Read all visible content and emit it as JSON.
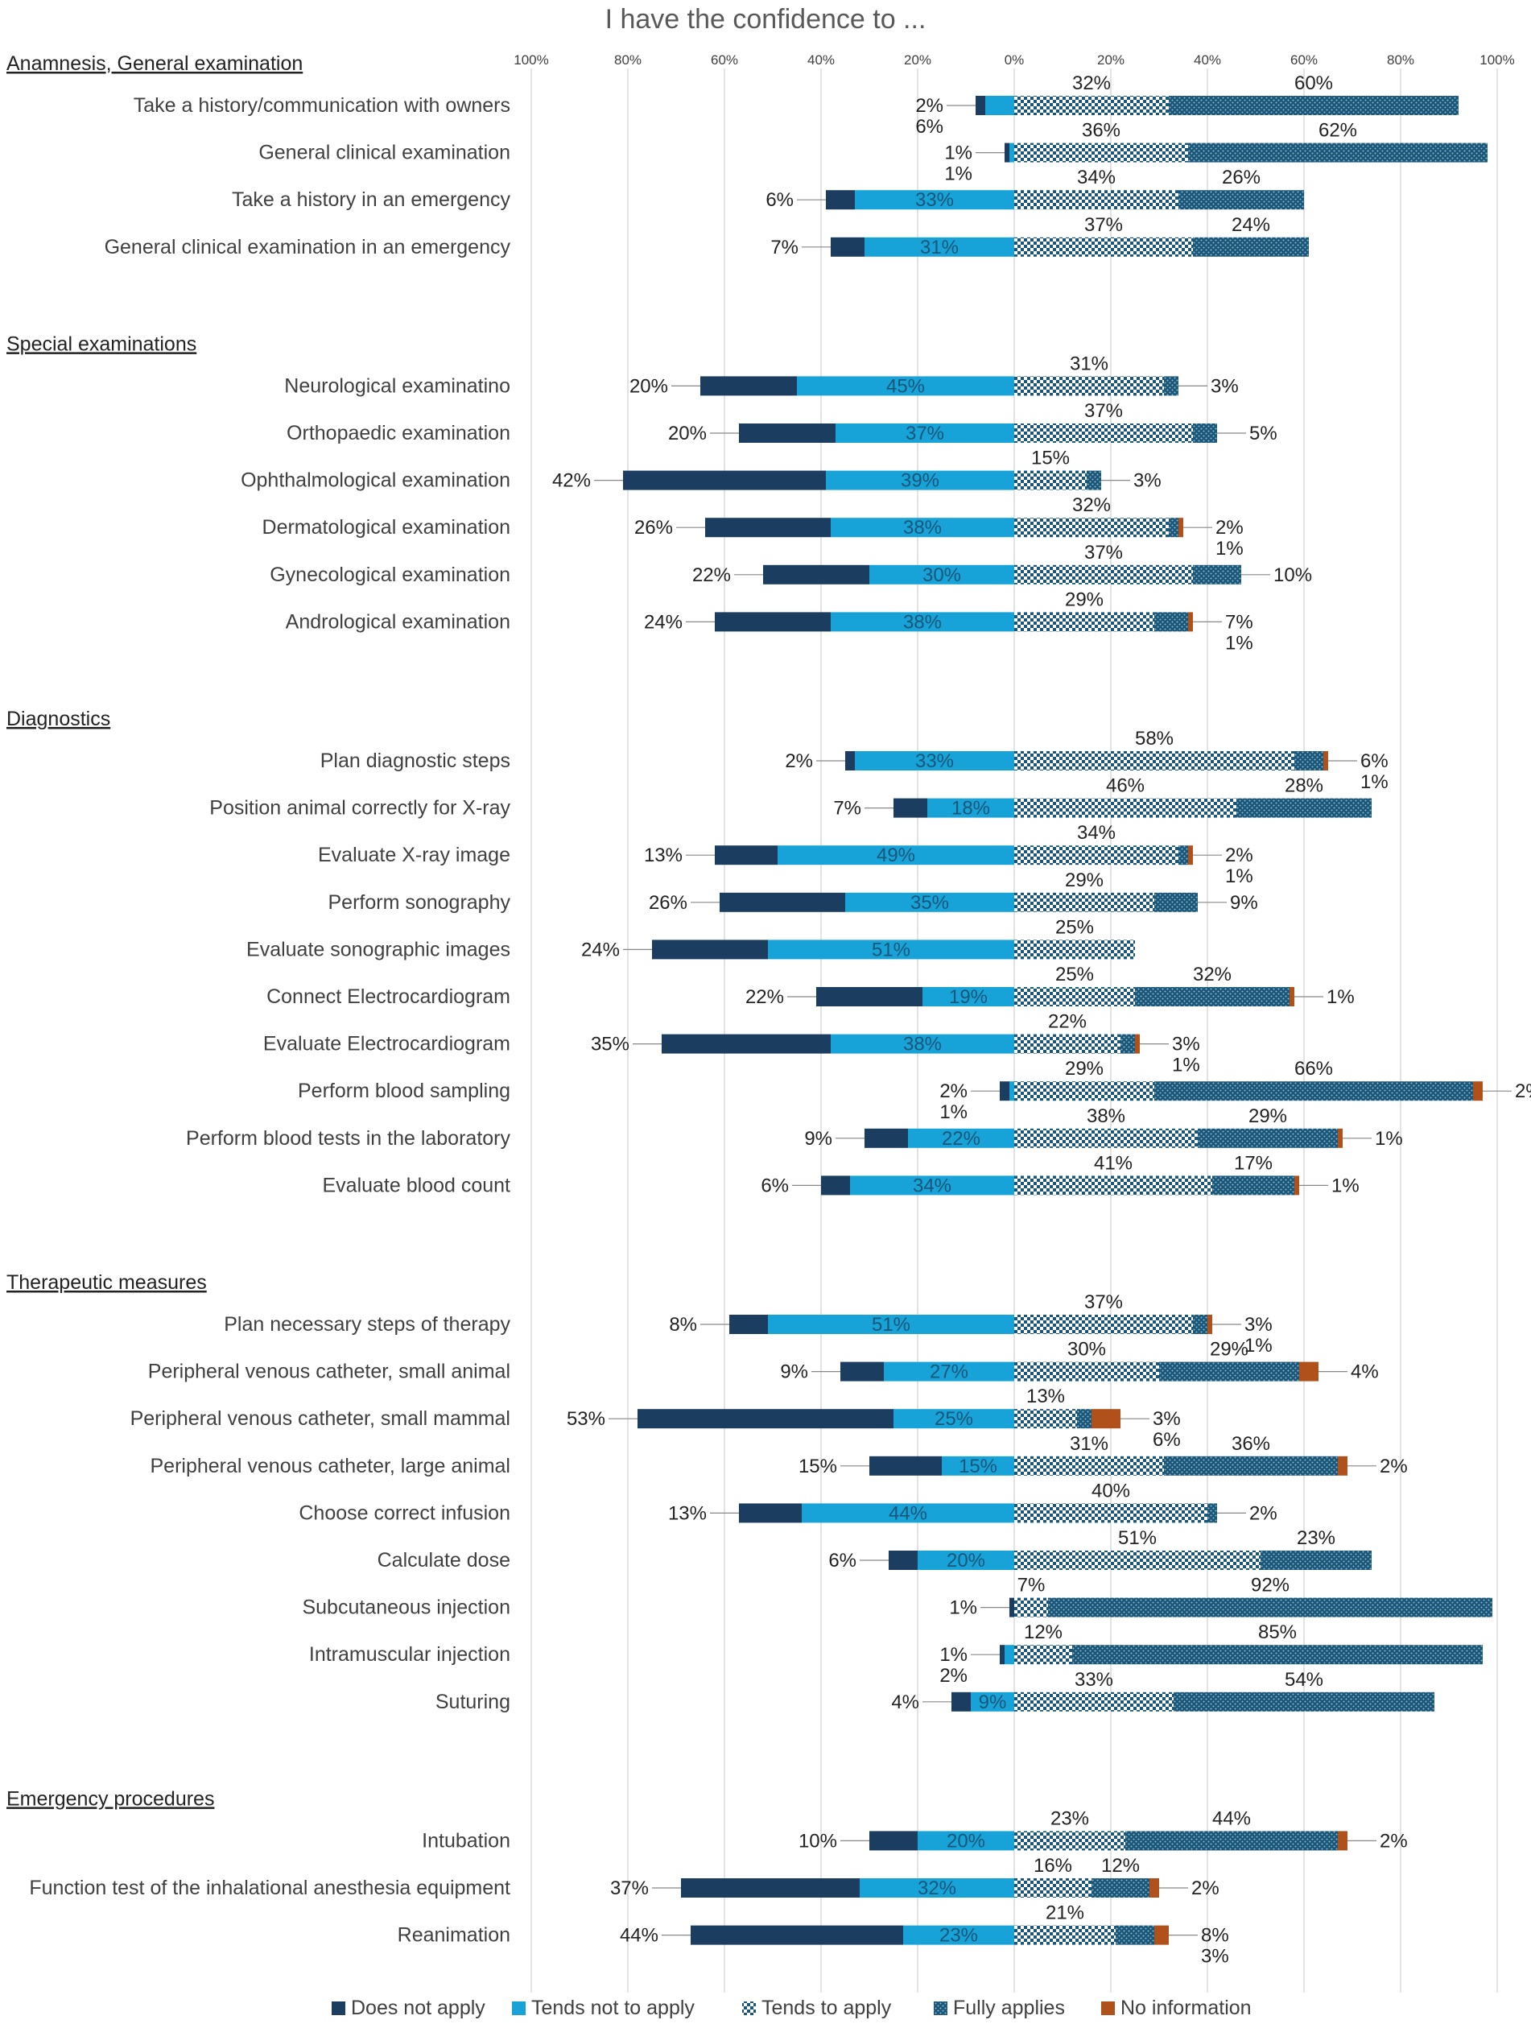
{
  "chart_data": {
    "type": "bar",
    "subtype": "diverging-stacked",
    "title": "I have the confidence to ...",
    "xlabel": "",
    "ylabel": "",
    "xlim": [
      -100,
      100
    ],
    "axis_ticks": [
      "100%",
      "80%",
      "60%",
      "40%",
      "20%",
      "0%",
      "20%",
      "40%",
      "60%",
      "80%",
      "100%"
    ],
    "legend_position": "bottom",
    "legend": [
      {
        "name": "Does not apply",
        "color": "#1a3d60",
        "pattern": "solid"
      },
      {
        "name": "Tends not to apply",
        "color": "#17a2d8",
        "pattern": "solid"
      },
      {
        "name": "Tends to apply",
        "color": "#1a5677",
        "pattern": "checker"
      },
      {
        "name": "Fully applies",
        "color": "#1a5677",
        "pattern": "dots"
      },
      {
        "name": "No information",
        "color": "#b0501a",
        "pattern": "solid"
      }
    ],
    "groups": [
      {
        "name": "Anamnesis, General examination",
        "items": [
          {
            "label": "Take a history/communication with owners",
            "values": [
              2,
              6,
              32,
              60,
              0
            ],
            "labels": [
              "2%",
              "6%",
              "32%",
              "60%",
              ""
            ]
          },
          {
            "label": "General clinical examination",
            "values": [
              1,
              1,
              36,
              62,
              0
            ],
            "labels": [
              "1%",
              "1%",
              "36%",
              "62%",
              ""
            ]
          },
          {
            "label": "Take a history in an emergency",
            "values": [
              6,
              33,
              34,
              26,
              0
            ],
            "labels": [
              "6%",
              "33%",
              "34%",
              "26%",
              ""
            ]
          },
          {
            "label": "General clinical examination in an emergency",
            "values": [
              7,
              31,
              37,
              24,
              0
            ],
            "labels": [
              "7%",
              "31%",
              "37%",
              "24%",
              ""
            ]
          }
        ]
      },
      {
        "name": "Special examinations",
        "items": [
          {
            "label": "Neurological examinatino",
            "values": [
              20,
              45,
              31,
              3,
              0
            ],
            "labels": [
              "20%",
              "45%",
              "31%",
              "3%",
              ""
            ]
          },
          {
            "label": "Orthopaedic examination",
            "values": [
              20,
              37,
              37,
              5,
              0
            ],
            "labels": [
              "20%",
              "37%",
              "37%",
              "5%",
              ""
            ]
          },
          {
            "label": "Ophthalmological examination",
            "values": [
              42,
              39,
              15,
              3,
              0
            ],
            "labels": [
              "42%",
              "39%",
              "15%",
              "3%",
              ""
            ]
          },
          {
            "label": "Dermatological examination",
            "values": [
              26,
              38,
              32,
              2,
              1
            ],
            "labels": [
              "26%",
              "38%",
              "32%",
              "2%",
              "1%"
            ]
          },
          {
            "label": "Gynecological examination",
            "values": [
              22,
              30,
              37,
              10,
              0
            ],
            "labels": [
              "22%",
              "30%",
              "37%",
              "10%",
              ""
            ]
          },
          {
            "label": "Andrological examination",
            "values": [
              24,
              38,
              29,
              7,
              1
            ],
            "labels": [
              "24%",
              "38%",
              "29%",
              "7%",
              "1%"
            ]
          }
        ]
      },
      {
        "name": "Diagnostics",
        "items": [
          {
            "label": "Plan diagnostic steps",
            "values": [
              2,
              33,
              58,
              6,
              1
            ],
            "labels": [
              "2%",
              "33%",
              "58%",
              "6%",
              "1%"
            ]
          },
          {
            "label": "Position animal correctly for X-ray",
            "values": [
              7,
              18,
              46,
              28,
              0
            ],
            "labels": [
              "7%",
              "18%",
              "46%",
              "28%",
              ""
            ]
          },
          {
            "label": "Evaluate X-ray image",
            "values": [
              13,
              49,
              34,
              2,
              1
            ],
            "labels": [
              "13%",
              "49%",
              "34%",
              "2%",
              "1%"
            ]
          },
          {
            "label": "Perform sonography",
            "values": [
              26,
              35,
              29,
              9,
              0
            ],
            "labels": [
              "26%",
              "35%",
              "29%",
              "9%",
              ""
            ]
          },
          {
            "label": "Evaluate sonographic images",
            "values": [
              24,
              51,
              25,
              0,
              0
            ],
            "labels": [
              "24%",
              "51%",
              "25%",
              "",
              ""
            ]
          },
          {
            "label": "Connect Electrocardiogram",
            "values": [
              22,
              19,
              25,
              32,
              1
            ],
            "labels": [
              "22%",
              "19%",
              "25%",
              "32%",
              "1%"
            ]
          },
          {
            "label": "Evaluate Electrocardiogram",
            "values": [
              35,
              38,
              22,
              3,
              1
            ],
            "labels": [
              "35%",
              "38%",
              "22%",
              "3%",
              "1%"
            ]
          },
          {
            "label": "Perform blood sampling",
            "values": [
              2,
              1,
              29,
              66,
              2
            ],
            "labels": [
              "2%",
              "1%",
              "29%",
              "66%",
              "2%"
            ]
          },
          {
            "label": "Perform blood tests in the laboratory",
            "values": [
              9,
              22,
              38,
              29,
              1
            ],
            "labels": [
              "9%",
              "22%",
              "38%",
              "29%",
              "1%"
            ]
          },
          {
            "label": "Evaluate blood count",
            "values": [
              6,
              34,
              41,
              17,
              1
            ],
            "labels": [
              "6%",
              "34%",
              "41%",
              "17%",
              "1%"
            ]
          }
        ]
      },
      {
        "name": "Therapeutic measures",
        "items": [
          {
            "label": "Plan necessary steps of therapy",
            "values": [
              8,
              51,
              37,
              3,
              1
            ],
            "labels": [
              "8%",
              "51%",
              "37%",
              "3%",
              "1%"
            ]
          },
          {
            "label": "Peripheral venous catheter, small animal",
            "values": [
              9,
              27,
              30,
              29,
              4
            ],
            "labels": [
              "9%",
              "27%",
              "30%",
              "29%",
              "4%"
            ]
          },
          {
            "label": "Peripheral venous catheter, small mammal",
            "values": [
              53,
              25,
              13,
              3,
              6
            ],
            "labels": [
              "53%",
              "25%",
              "13%",
              "3%",
              "6%"
            ]
          },
          {
            "label": "Peripheral venous catheter, large animal",
            "values": [
              15,
              15,
              31,
              36,
              2
            ],
            "labels": [
              "15%",
              "15%",
              "31%",
              "36%",
              "2%"
            ]
          },
          {
            "label": "Choose correct infusion",
            "values": [
              13,
              44,
              40,
              2,
              0
            ],
            "labels": [
              "13%",
              "44%",
              "40%",
              "2%",
              ""
            ]
          },
          {
            "label": "Calculate dose",
            "values": [
              6,
              20,
              51,
              23,
              0
            ],
            "labels": [
              "6%",
              "20%",
              "51%",
              "23%",
              ""
            ]
          },
          {
            "label": "Subcutaneous injection",
            "values": [
              1,
              0,
              7,
              92,
              0
            ],
            "labels": [
              "1%",
              "",
              "7%",
              "92%",
              ""
            ]
          },
          {
            "label": "Intramuscular injection",
            "values": [
              1,
              2,
              12,
              85,
              0
            ],
            "labels": [
              "1%",
              "2%",
              "12%",
              "85%",
              ""
            ]
          },
          {
            "label": "Suturing",
            "values": [
              4,
              9,
              33,
              54,
              0
            ],
            "labels": [
              "4%",
              "9%",
              "33%",
              "54%",
              ""
            ]
          }
        ]
      },
      {
        "name": "Emergency procedures",
        "items": [
          {
            "label": "Intubation",
            "values": [
              10,
              20,
              23,
              44,
              2
            ],
            "labels": [
              "10%",
              "20%",
              "23%",
              "44%",
              "2%"
            ]
          },
          {
            "label": "Function test of the inhalational anesthesia equipment",
            "values": [
              37,
              32,
              16,
              12,
              2
            ],
            "labels": [
              "37%",
              "32%",
              "16%",
              "12%",
              "2%"
            ]
          },
          {
            "label": "Reanimation",
            "values": [
              44,
              23,
              21,
              8,
              3
            ],
            "labels": [
              "44%",
              "23%",
              "21%",
              "8%",
              "3%"
            ]
          }
        ]
      }
    ]
  }
}
